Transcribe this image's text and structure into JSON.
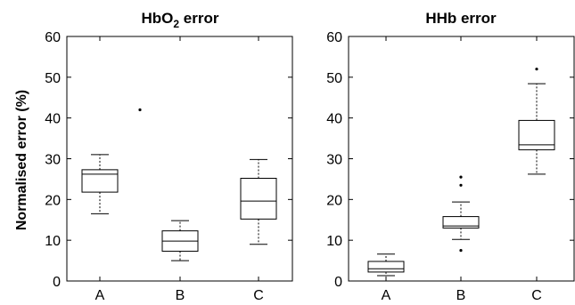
{
  "y_axis_label": "Normalised error (%)",
  "chart_data": [
    {
      "type": "box",
      "title_main": "HbO",
      "title_sub": "2",
      "title_tail": " error",
      "ylim": [
        0,
        60
      ],
      "yticks": [
        0,
        10,
        20,
        30,
        40,
        50,
        60
      ],
      "categories": [
        "A",
        "B",
        "C"
      ],
      "boxes": [
        {
          "category": "A",
          "min": 16.5,
          "q1": 21.8,
          "median": 26.2,
          "q3": 27.3,
          "max": 31.0,
          "outliers": [
            42.0
          ]
        },
        {
          "category": "B",
          "min": 5.0,
          "q1": 7.3,
          "median": 9.8,
          "q3": 12.3,
          "max": 14.8,
          "outliers": []
        },
        {
          "category": "C",
          "min": 9.0,
          "q1": 15.2,
          "median": 19.6,
          "q3": 25.2,
          "max": 29.8,
          "outliers": []
        }
      ],
      "grid": false
    },
    {
      "type": "box",
      "title_main": "HHb error",
      "title_sub": "",
      "title_tail": "",
      "ylim": [
        0,
        60
      ],
      "yticks": [
        0,
        10,
        20,
        30,
        40,
        50,
        60
      ],
      "categories": [
        "A",
        "B",
        "C"
      ],
      "boxes": [
        {
          "category": "A",
          "min": 1.3,
          "q1": 2.2,
          "median": 3.0,
          "q3": 4.8,
          "max": 6.6,
          "outliers": []
        },
        {
          "category": "B",
          "min": 10.2,
          "q1": 13.0,
          "median": 13.5,
          "q3": 15.8,
          "max": 19.4,
          "outliers": [
            7.5,
            23.5,
            25.5
          ]
        },
        {
          "category": "C",
          "min": 26.2,
          "q1": 32.2,
          "median": 33.4,
          "q3": 39.4,
          "max": 48.4,
          "outliers": [
            52.0
          ]
        }
      ],
      "grid": false
    }
  ]
}
